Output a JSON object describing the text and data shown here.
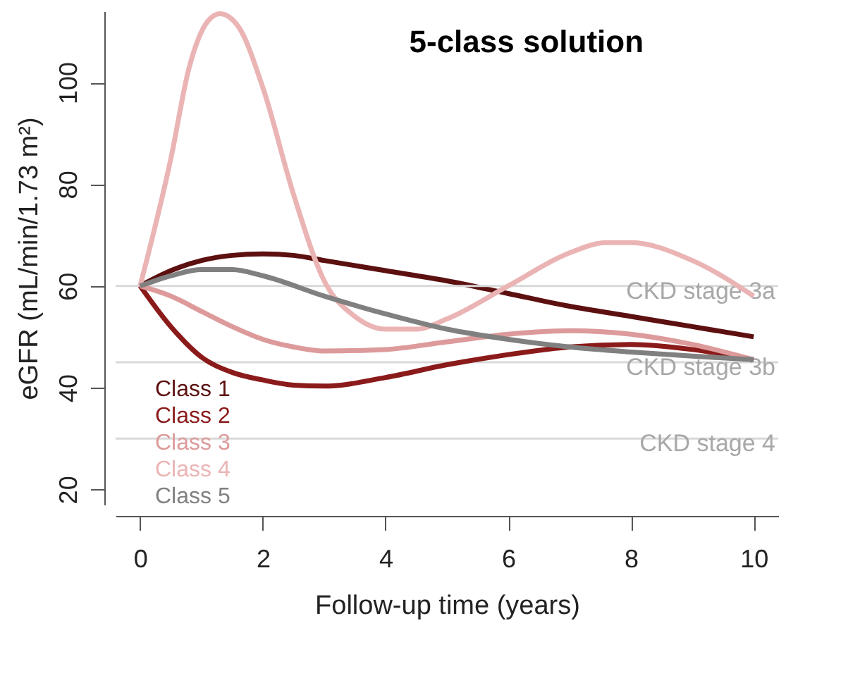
{
  "chart_data": {
    "type": "line",
    "title": "5-class solution",
    "xlabel": "Follow-up time (years)",
    "ylabel": "eGFR (mL/min/1.73 m²)",
    "xlim": [
      -0.4,
      10.4
    ],
    "ylim": [
      17,
      114
    ],
    "xticks": [
      0,
      2,
      4,
      6,
      8,
      10
    ],
    "yticks": [
      20,
      40,
      60,
      80,
      100
    ],
    "grid": false,
    "legend": "bottom left",
    "line_style": "solid",
    "marker": "none",
    "series": [
      {
        "name": "Class 1",
        "color": "#5c1010",
        "x": [
          0,
          0.5,
          1,
          1.5,
          2,
          2.5,
          3,
          4,
          5,
          6,
          7,
          8,
          9,
          10
        ],
        "values": [
          60,
          63,
          65,
          66,
          66.3,
          66,
          65,
          63,
          61,
          58.5,
          56,
          54,
          52,
          50
        ]
      },
      {
        "name": "Class 2",
        "color": "#8b1a1a",
        "x": [
          0,
          0.5,
          1,
          1.5,
          2,
          2.5,
          3,
          4,
          5,
          6,
          7,
          8,
          9,
          10
        ],
        "values": [
          60,
          52,
          46,
          43,
          41.5,
          40.5,
          40.3,
          42,
          44.5,
          46.5,
          48,
          48.5,
          47.5,
          45.5
        ]
      },
      {
        "name": "Class 3",
        "color": "#dd9a9a",
        "x": [
          0,
          0.5,
          1,
          1.5,
          2,
          2.5,
          3,
          4,
          5,
          6,
          7,
          8,
          9,
          10
        ],
        "values": [
          60,
          58,
          55,
          52,
          49.5,
          48,
          47.2,
          47.5,
          49,
          50.5,
          51.2,
          50.5,
          48.5,
          45.5
        ]
      },
      {
        "name": "Class 4",
        "color": "#ebb4b4",
        "x": [
          0,
          0.5,
          0.8,
          1.1,
          1.3,
          1.6,
          2,
          2.5,
          3,
          3.5,
          4,
          4.5,
          5,
          6,
          7,
          7.6,
          8,
          9,
          10
        ],
        "values": [
          60,
          85,
          103,
          112,
          113.5,
          111,
          99,
          78,
          61,
          54,
          51.5,
          51.5,
          53.5,
          60,
          66.5,
          68.5,
          68.5,
          65,
          58
        ]
      },
      {
        "name": "Class 5",
        "color": "#808080",
        "x": [
          0,
          0.5,
          1,
          1.5,
          2,
          3,
          4,
          5,
          6,
          7,
          8,
          9,
          10
        ],
        "values": [
          60,
          62,
          63.2,
          63.2,
          62,
          58,
          54.5,
          51.5,
          49.5,
          48,
          47,
          46.2,
          45.5
        ]
      }
    ],
    "ref_lines": [
      {
        "axis": "y",
        "value": 60,
        "label": "CKD stage 3a",
        "color": "#d9d9d9"
      },
      {
        "axis": "y",
        "value": 45,
        "label": "CKD stage 3b",
        "color": "#d9d9d9"
      },
      {
        "axis": "y",
        "value": 30,
        "label": "CKD stage 4",
        "color": "#d9d9d9"
      }
    ]
  }
}
